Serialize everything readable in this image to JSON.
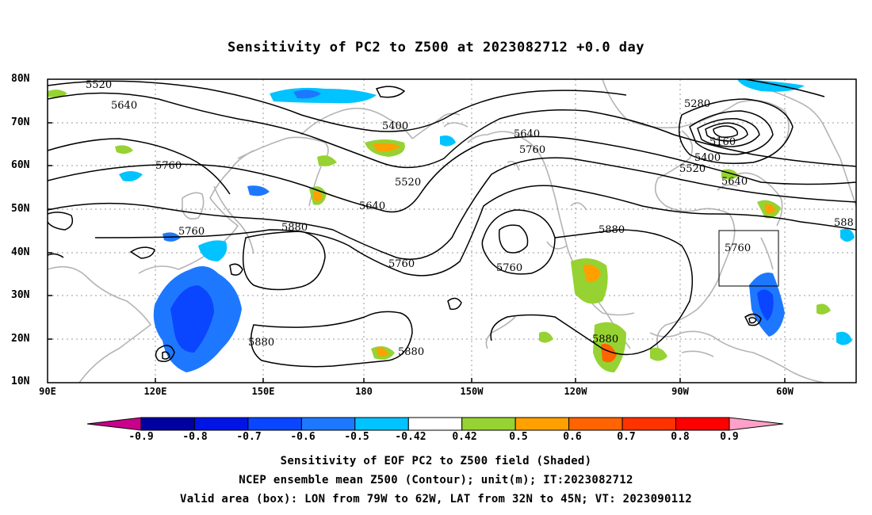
{
  "title": "Sensitivity of PC2 to Z500 at 2023082712 +0.0 day",
  "lat_labels": [
    "80N",
    "70N",
    "60N",
    "50N",
    "40N",
    "30N",
    "20N",
    "10N"
  ],
  "lon_labels": [
    "90E",
    "120E",
    "150E",
    "180",
    "150W",
    "120W",
    "90W",
    "60W"
  ],
  "contour_labels": {
    "c1": "5520",
    "c2": "5640",
    "c3": "5760",
    "c4": "5400",
    "c5": "5640",
    "c6": "5760",
    "c7": "5520",
    "c8": "5640",
    "c9": "5280",
    "c10": "5160",
    "c11": "5400",
    "c12": "5520",
    "c13": "5640",
    "c14": "5760",
    "c15": "5880",
    "c16": "5760",
    "c17": "5880",
    "c18": "5760",
    "c19": "5760",
    "c20": "5880",
    "c21": "5880",
    "c22": "5880",
    "c23": "588"
  },
  "colorbar": {
    "labels": [
      "-0.9",
      "-0.8",
      "-0.7",
      "-0.6",
      "-0.5",
      "-0.42",
      "0.42",
      "0.5",
      "0.6",
      "0.7",
      "0.8",
      "0.9"
    ],
    "colors": [
      "#0000a0",
      "#0014e6",
      "#0a46ff",
      "#1e78ff",
      "#00c3ff",
      "#ffffff",
      "#96d232",
      "#ffa000",
      "#ff6400",
      "#ff3200",
      "#ff0000"
    ],
    "low_end_color": "#c8008c",
    "high_end_color": "#ffa0c8"
  },
  "captions": {
    "line1": "Sensitivity of EOF PC2 to Z500 field (Shaded)",
    "line2": "NCEP ensemble mean Z500 (Contour); unit(m); IT:2023082712",
    "line3": "Valid area (box): LON from 79W to 62W, LAT from 32N to 45N; VT: 2023090112"
  }
}
